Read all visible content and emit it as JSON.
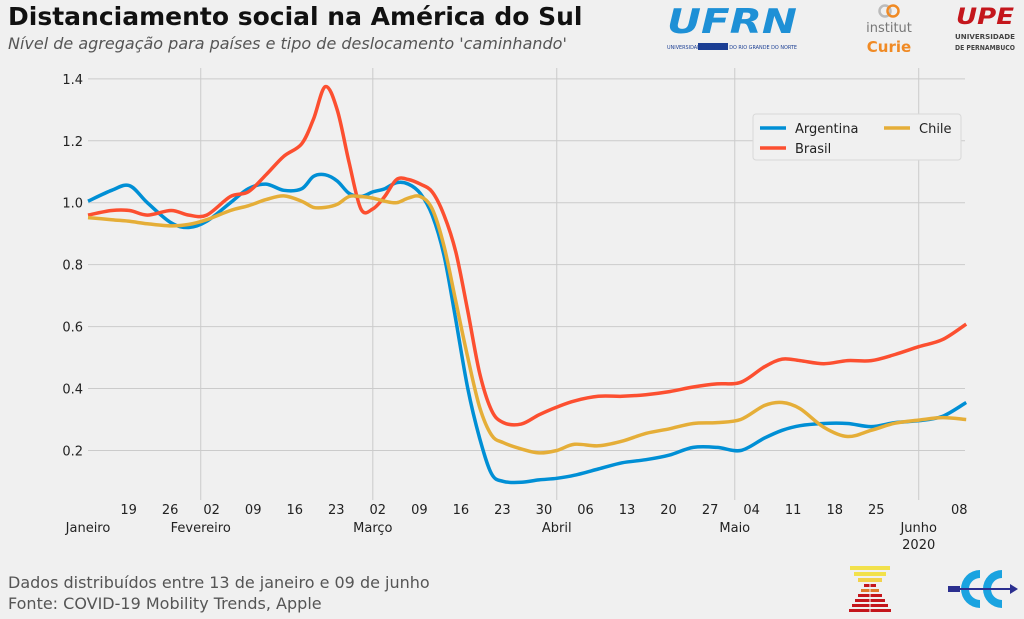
{
  "title": "Distanciamento social na América do Sul",
  "subtitle": "Nível de agregação para países e tipo de deslocamento 'caminhando'",
  "footer": {
    "line1": "Dados distribuídos entre 13 de janeiro e 09 de junho",
    "line2": "Fonte: COVID-19 Mobility Trends, Apple"
  },
  "logos": {
    "ufrn": {
      "text": "UFRN",
      "subtext": "UNIVERSIDADE FEDERAL DO RIO GRANDE DO NORTE",
      "color": "#1e90d6"
    },
    "curie": {
      "text1": "institut",
      "text2": "Curie",
      "color": "#f08a24"
    },
    "upe": {
      "text": "UPE",
      "subtext1": "UNIVERSIDADE",
      "subtext2": "DE PERNAMBUCO",
      "color": "#c4161c"
    }
  },
  "chart_data": {
    "type": "line",
    "title": "Distanciamento social na América do Sul",
    "xlabel": "",
    "ylabel": "",
    "xlim": [
      "2020-01-13",
      "2020-06-09"
    ],
    "ylim": [
      0.04,
      1.435
    ],
    "grid": true,
    "legend_position": "upper-right",
    "y_ticks": [
      0.2,
      0.4,
      0.6,
      0.8,
      1.0,
      1.2,
      1.4
    ],
    "y_tick_labels": [
      "0.2",
      "0.4",
      "0.6",
      "0.8",
      "1.0",
      "1.2",
      "1.4"
    ],
    "x_minor_ticks": [
      {
        "date": "2020-01-19",
        "label": "19"
      },
      {
        "date": "2020-01-26",
        "label": "26"
      },
      {
        "date": "2020-02-02",
        "label": "02"
      },
      {
        "date": "2020-02-09",
        "label": "09"
      },
      {
        "date": "2020-02-16",
        "label": "16"
      },
      {
        "date": "2020-02-23",
        "label": "23"
      },
      {
        "date": "2020-03-01",
        "label": "02"
      },
      {
        "date": "2020-03-08",
        "label": "09"
      },
      {
        "date": "2020-03-15",
        "label": "16"
      },
      {
        "date": "2020-03-22",
        "label": "23"
      },
      {
        "date": "2020-03-29",
        "label": "30"
      },
      {
        "date": "2020-04-05",
        "label": "06"
      },
      {
        "date": "2020-04-12",
        "label": "13"
      },
      {
        "date": "2020-04-19",
        "label": "20"
      },
      {
        "date": "2020-04-26",
        "label": "27"
      },
      {
        "date": "2020-05-03",
        "label": "04"
      },
      {
        "date": "2020-05-10",
        "label": "11"
      },
      {
        "date": "2020-05-17",
        "label": "18"
      },
      {
        "date": "2020-05-24",
        "label": "25"
      },
      {
        "date": "2020-06-07",
        "label": "08"
      }
    ],
    "x_major_ticks": [
      {
        "date": "2020-01-13",
        "label": "Janeiro"
      },
      {
        "date": "2020-02-01",
        "label": "Fevereiro"
      },
      {
        "date": "2020-03-01",
        "label": "Março"
      },
      {
        "date": "2020-04-01",
        "label": "Abril"
      },
      {
        "date": "2020-05-01",
        "label": "Maio"
      },
      {
        "date": "2020-06-01",
        "label": "Junho",
        "sublabel": "2020"
      }
    ],
    "x": [
      "2020-01-13",
      "2020-01-17",
      "2020-01-20",
      "2020-01-23",
      "2020-01-27",
      "2020-01-30",
      "2020-02-02",
      "2020-02-06",
      "2020-02-09",
      "2020-02-12",
      "2020-02-15",
      "2020-02-18",
      "2020-02-20",
      "2020-02-22",
      "2020-02-24",
      "2020-02-26",
      "2020-02-28",
      "2020-03-01",
      "2020-03-03",
      "2020-03-05",
      "2020-03-07",
      "2020-03-09",
      "2020-03-11",
      "2020-03-13",
      "2020-03-15",
      "2020-03-17",
      "2020-03-19",
      "2020-03-21",
      "2020-03-23",
      "2020-03-26",
      "2020-03-29",
      "2020-04-01",
      "2020-04-04",
      "2020-04-08",
      "2020-04-12",
      "2020-04-16",
      "2020-04-20",
      "2020-04-24",
      "2020-04-28",
      "2020-05-02",
      "2020-05-06",
      "2020-05-09",
      "2020-05-12",
      "2020-05-16",
      "2020-05-20",
      "2020-05-24",
      "2020-05-28",
      "2020-06-01",
      "2020-06-05",
      "2020-06-09"
    ],
    "series": [
      {
        "name": "Argentina",
        "color": "#008fd5",
        "values": [
          1.005,
          1.04,
          1.055,
          1.0,
          0.935,
          0.92,
          0.94,
          1.0,
          1.045,
          1.06,
          1.04,
          1.045,
          1.085,
          1.09,
          1.07,
          1.03,
          1.02,
          1.035,
          1.045,
          1.065,
          1.06,
          1.03,
          0.96,
          0.83,
          0.62,
          0.4,
          0.24,
          0.125,
          0.1,
          0.097,
          0.105,
          0.11,
          0.12,
          0.14,
          0.16,
          0.17,
          0.185,
          0.21,
          0.21,
          0.2,
          0.24,
          0.265,
          0.28,
          0.287,
          0.287,
          0.277,
          0.29,
          0.296,
          0.31,
          0.355
        ]
      },
      {
        "name": "Brasil",
        "color": "#fc4f30",
        "values": [
          0.96,
          0.975,
          0.975,
          0.96,
          0.975,
          0.96,
          0.96,
          1.02,
          1.035,
          1.09,
          1.15,
          1.19,
          1.27,
          1.375,
          1.3,
          1.13,
          0.98,
          0.98,
          1.02,
          1.075,
          1.075,
          1.06,
          1.035,
          0.96,
          0.84,
          0.65,
          0.45,
          0.33,
          0.29,
          0.285,
          0.315,
          0.34,
          0.36,
          0.375,
          0.375,
          0.38,
          0.39,
          0.405,
          0.415,
          0.42,
          0.47,
          0.495,
          0.49,
          0.48,
          0.49,
          0.49,
          0.51,
          0.535,
          0.558,
          0.608
        ]
      },
      {
        "name": "Chile",
        "color": "#e5ae38",
        "values": [
          0.952,
          0.945,
          0.94,
          0.932,
          0.925,
          0.93,
          0.945,
          0.975,
          0.99,
          1.01,
          1.022,
          1.005,
          0.985,
          0.985,
          0.995,
          1.02,
          1.02,
          1.015,
          1.005,
          1.0,
          1.015,
          1.02,
          0.98,
          0.86,
          0.68,
          0.5,
          0.34,
          0.25,
          0.225,
          0.205,
          0.192,
          0.2,
          0.22,
          0.215,
          0.23,
          0.255,
          0.27,
          0.287,
          0.29,
          0.3,
          0.345,
          0.355,
          0.335,
          0.275,
          0.245,
          0.265,
          0.288,
          0.298,
          0.306,
          0.3
        ]
      }
    ]
  }
}
